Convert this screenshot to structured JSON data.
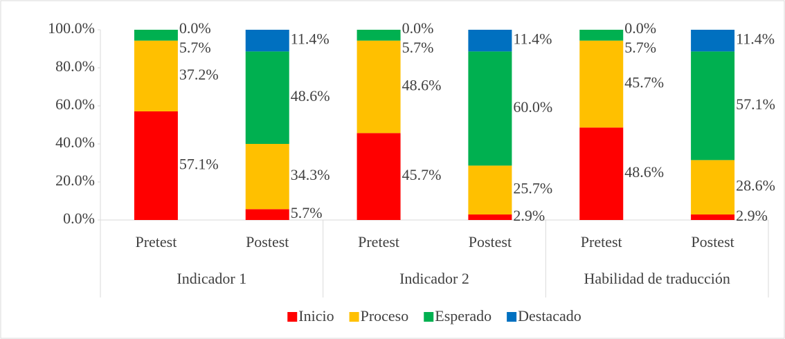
{
  "chart_data": {
    "type": "stacked-bar",
    "categories": [
      "Pretest",
      "Postest",
      "Pretest",
      "Postest",
      "Pretest",
      "Postest"
    ],
    "groups": [
      "Indicador 1",
      "Indicador 2",
      "Habilidad de traducción"
    ],
    "series": [
      {
        "name": "Inicio",
        "color": "#ff0000",
        "values": [
          57.1,
          5.7,
          45.7,
          2.9,
          48.6,
          2.9
        ],
        "value_labels": [
          "57.1%",
          "5.7%",
          "45.7%",
          "2.9%",
          "48.6%",
          "2.9%"
        ]
      },
      {
        "name": "Proceso",
        "color": "#ffc000",
        "values": [
          37.2,
          34.3,
          48.6,
          25.7,
          45.7,
          28.6
        ],
        "value_labels": [
          "37.2%",
          "34.3%",
          "48.6%",
          "25.7%",
          "45.7%",
          "28.6%"
        ]
      },
      {
        "name": "Esperado",
        "color": "#00b050",
        "values": [
          5.7,
          48.6,
          5.7,
          60.0,
          5.7,
          57.1
        ],
        "value_labels": [
          "5.7%",
          "48.6%",
          "5.7%",
          "60.0%",
          "5.7%",
          "57.1%"
        ]
      },
      {
        "name": "Destacado",
        "color": "#0070c0",
        "values": [
          0.0,
          11.4,
          0.0,
          11.4,
          0.0,
          11.4
        ],
        "value_labels": [
          "0.0%",
          "11.4%",
          "0.0%",
          "11.4%",
          "0.0%",
          "11.4%"
        ]
      }
    ],
    "ylim": [
      0,
      100
    ],
    "yticks": [
      {
        "value": 0,
        "label": "0.0%"
      },
      {
        "value": 20,
        "label": "20.0%"
      },
      {
        "value": 40,
        "label": "40.0%"
      },
      {
        "value": 60,
        "label": "60.0%"
      },
      {
        "value": 80,
        "label": "80.0%"
      },
      {
        "value": 100,
        "label": "100.0%"
      }
    ],
    "legend": "bottom"
  }
}
